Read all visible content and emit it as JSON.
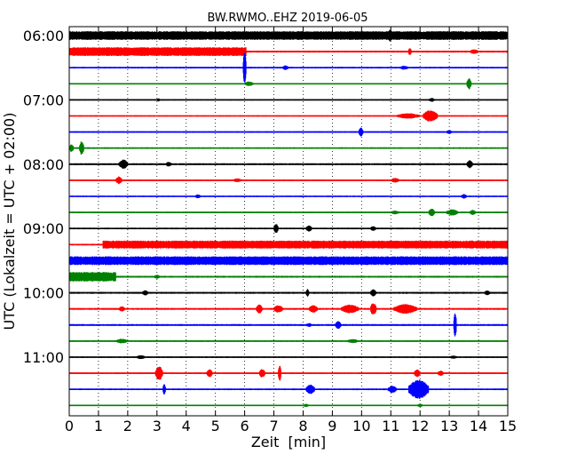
{
  "chart_data": {
    "type": "line",
    "title": "BW.RWMO..EHZ 2019-06-05",
    "xlabel": "Zeit  [min]",
    "ylabel": "UTC (Lokalzeit = UTC + 02:00)",
    "xlim": [
      0,
      15
    ],
    "x_ticks": [
      "0",
      "1",
      "2",
      "3",
      "4",
      "5",
      "6",
      "7",
      "8",
      "9",
      "10",
      "11",
      "12",
      "13",
      "14",
      "15"
    ],
    "y_tick_labels": [
      "06:00",
      "07:00",
      "08:00",
      "09:00",
      "10:00",
      "11:00"
    ],
    "grid": true,
    "trace_interval_minutes": 15,
    "color_cycle": [
      "#000000",
      "#ff0000",
      "#0000ff",
      "#008000"
    ],
    "traces": [
      {
        "start": "06:00",
        "color": "#000000",
        "base": 0.45,
        "events": [
          {
            "x_start": 0.0,
            "x_end": 15.0,
            "amplitude": 0.55
          },
          {
            "x_start": 10.9,
            "x_end": 11.05,
            "amplitude": 0.75
          }
        ]
      },
      {
        "start": "06:15",
        "color": "#ff0000",
        "base": 0.12,
        "events": [
          {
            "x_start": 0.0,
            "x_end": 6.05,
            "amplitude": 0.55
          },
          {
            "x_start": 11.6,
            "x_end": 11.7,
            "amplitude": 0.5
          },
          {
            "x_start": 13.7,
            "x_end": 14.0,
            "amplitude": 0.3
          }
        ]
      },
      {
        "start": "06:30",
        "color": "#0000ff",
        "base": 0.1,
        "events": [
          {
            "x_start": 5.95,
            "x_end": 6.05,
            "amplitude": 2.2
          },
          {
            "x_start": 7.3,
            "x_end": 7.5,
            "amplitude": 0.3
          },
          {
            "x_start": 11.3,
            "x_end": 11.6,
            "amplitude": 0.25
          }
        ]
      },
      {
        "start": "06:45",
        "color": "#008000",
        "base": 0.08,
        "events": [
          {
            "x_start": 6.0,
            "x_end": 6.3,
            "amplitude": 0.3
          },
          {
            "x_start": 13.6,
            "x_end": 13.75,
            "amplitude": 0.7
          }
        ]
      },
      {
        "start": "07:00",
        "color": "#000000",
        "base": 0.08,
        "events": [
          {
            "x_start": 3.0,
            "x_end": 3.1,
            "amplitude": 0.2
          },
          {
            "x_start": 12.3,
            "x_end": 12.5,
            "amplitude": 0.25
          }
        ]
      },
      {
        "start": "07:15",
        "color": "#ff0000",
        "base": 0.08,
        "events": [
          {
            "x_start": 11.2,
            "x_end": 12.0,
            "amplitude": 0.35
          },
          {
            "x_start": 12.1,
            "x_end": 12.6,
            "amplitude": 0.75
          }
        ]
      },
      {
        "start": "07:30",
        "color": "#0000ff",
        "base": 0.1,
        "events": [
          {
            "x_start": 9.9,
            "x_end": 10.05,
            "amplitude": 0.6
          },
          {
            "x_start": 12.9,
            "x_end": 13.1,
            "amplitude": 0.25
          }
        ]
      },
      {
        "start": "07:45",
        "color": "#008000",
        "base": 0.1,
        "events": [
          {
            "x_start": 0.0,
            "x_end": 0.15,
            "amplitude": 0.5
          },
          {
            "x_start": 0.35,
            "x_end": 0.5,
            "amplitude": 0.9
          }
        ]
      },
      {
        "start": "08:00",
        "color": "#000000",
        "base": 0.12,
        "events": [
          {
            "x_start": 1.7,
            "x_end": 2.0,
            "amplitude": 0.6
          },
          {
            "x_start": 3.3,
            "x_end": 3.5,
            "amplitude": 0.3
          },
          {
            "x_start": 13.6,
            "x_end": 13.8,
            "amplitude": 0.5
          }
        ]
      },
      {
        "start": "08:15",
        "color": "#ff0000",
        "base": 0.1,
        "events": [
          {
            "x_start": 1.6,
            "x_end": 1.8,
            "amplitude": 0.5
          },
          {
            "x_start": 5.6,
            "x_end": 5.9,
            "amplitude": 0.25
          },
          {
            "x_start": 11.0,
            "x_end": 11.3,
            "amplitude": 0.3
          }
        ]
      },
      {
        "start": "08:30",
        "color": "#0000ff",
        "base": 0.08,
        "events": [
          {
            "x_start": 4.3,
            "x_end": 4.5,
            "amplitude": 0.25
          },
          {
            "x_start": 13.4,
            "x_end": 13.6,
            "amplitude": 0.3
          }
        ]
      },
      {
        "start": "08:45",
        "color": "#008000",
        "base": 0.1,
        "events": [
          {
            "x_start": 11.0,
            "x_end": 11.3,
            "amplitude": 0.25
          },
          {
            "x_start": 12.3,
            "x_end": 12.5,
            "amplitude": 0.5
          },
          {
            "x_start": 12.9,
            "x_end": 13.3,
            "amplitude": 0.4
          },
          {
            "x_start": 13.7,
            "x_end": 13.9,
            "amplitude": 0.35
          }
        ]
      },
      {
        "start": "09:00",
        "color": "#000000",
        "base": 0.1,
        "events": [
          {
            "x_start": 7.0,
            "x_end": 7.15,
            "amplitude": 0.6
          },
          {
            "x_start": 8.1,
            "x_end": 8.3,
            "amplitude": 0.4
          },
          {
            "x_start": 10.3,
            "x_end": 10.5,
            "amplitude": 0.3
          }
        ]
      },
      {
        "start": "09:15",
        "color": "#ff0000",
        "base": 0.1,
        "events": [
          {
            "x_start": 1.15,
            "x_end": 15.0,
            "amplitude": 0.5
          }
        ]
      },
      {
        "start": "09:30",
        "color": "#0000ff",
        "base": 0.4,
        "events": [
          {
            "x_start": 0.0,
            "x_end": 15.0,
            "amplitude": 0.55
          }
        ]
      },
      {
        "start": "09:45",
        "color": "#008000",
        "base": 0.12,
        "events": [
          {
            "x_start": 0.0,
            "x_end": 1.6,
            "amplitude": 0.6
          },
          {
            "x_start": 2.9,
            "x_end": 3.1,
            "amplitude": 0.25
          }
        ]
      },
      {
        "start": "10:00",
        "color": "#000000",
        "base": 0.12,
        "events": [
          {
            "x_start": 2.5,
            "x_end": 2.7,
            "amplitude": 0.35
          },
          {
            "x_start": 8.1,
            "x_end": 8.2,
            "amplitude": 0.5
          },
          {
            "x_start": 10.3,
            "x_end": 10.5,
            "amplitude": 0.45
          },
          {
            "x_start": 14.2,
            "x_end": 14.4,
            "amplitude": 0.3
          }
        ]
      },
      {
        "start": "10:15",
        "color": "#ff0000",
        "base": 0.12,
        "events": [
          {
            "x_start": 1.7,
            "x_end": 1.9,
            "amplitude": 0.35
          },
          {
            "x_start": 6.4,
            "x_end": 6.6,
            "amplitude": 0.6
          },
          {
            "x_start": 7.0,
            "x_end": 7.3,
            "amplitude": 0.5
          },
          {
            "x_start": 8.2,
            "x_end": 8.5,
            "amplitude": 0.5
          },
          {
            "x_start": 9.3,
            "x_end": 9.9,
            "amplitude": 0.55
          },
          {
            "x_start": 10.3,
            "x_end": 10.5,
            "amplitude": 0.8
          },
          {
            "x_start": 11.1,
            "x_end": 11.9,
            "amplitude": 0.6
          }
        ]
      },
      {
        "start": "10:30",
        "color": "#0000ff",
        "base": 0.12,
        "events": [
          {
            "x_start": 8.1,
            "x_end": 8.3,
            "amplitude": 0.25
          },
          {
            "x_start": 9.1,
            "x_end": 9.3,
            "amplitude": 0.5
          },
          {
            "x_start": 13.15,
            "x_end": 13.25,
            "amplitude": 1.5
          }
        ]
      },
      {
        "start": "10:45",
        "color": "#008000",
        "base": 0.1,
        "events": [
          {
            "x_start": 1.6,
            "x_end": 2.0,
            "amplitude": 0.3
          },
          {
            "x_start": 9.5,
            "x_end": 9.9,
            "amplitude": 0.25
          }
        ]
      },
      {
        "start": "11:00",
        "color": "#000000",
        "base": 0.1,
        "events": [
          {
            "x_start": 2.3,
            "x_end": 2.6,
            "amplitude": 0.25
          },
          {
            "x_start": 13.0,
            "x_end": 13.3,
            "amplitude": 0.2
          }
        ]
      },
      {
        "start": "11:15",
        "color": "#ff0000",
        "base": 0.1,
        "events": [
          {
            "x_start": 2.95,
            "x_end": 3.2,
            "amplitude": 0.9
          },
          {
            "x_start": 4.7,
            "x_end": 4.9,
            "amplitude": 0.5
          },
          {
            "x_start": 6.5,
            "x_end": 6.7,
            "amplitude": 0.55
          },
          {
            "x_start": 7.15,
            "x_end": 7.25,
            "amplitude": 1.0
          },
          {
            "x_start": 11.8,
            "x_end": 12.0,
            "amplitude": 0.5
          },
          {
            "x_start": 12.6,
            "x_end": 12.8,
            "amplitude": 0.35
          }
        ]
      },
      {
        "start": "11:30",
        "color": "#0000ff",
        "base": 0.1,
        "events": [
          {
            "x_start": 3.2,
            "x_end": 3.3,
            "amplitude": 0.7
          },
          {
            "x_start": 8.1,
            "x_end": 8.4,
            "amplitude": 0.6
          },
          {
            "x_start": 10.9,
            "x_end": 11.2,
            "amplitude": 0.45
          },
          {
            "x_start": 11.6,
            "x_end": 12.3,
            "amplitude": 1.2
          }
        ]
      },
      {
        "start": "11:45",
        "color": "#008000",
        "base": 0.08,
        "events": [
          {
            "x_start": 8.0,
            "x_end": 8.2,
            "amplitude": 0.2
          },
          {
            "x_start": 11.9,
            "x_end": 12.1,
            "amplitude": 0.2
          }
        ]
      }
    ]
  }
}
